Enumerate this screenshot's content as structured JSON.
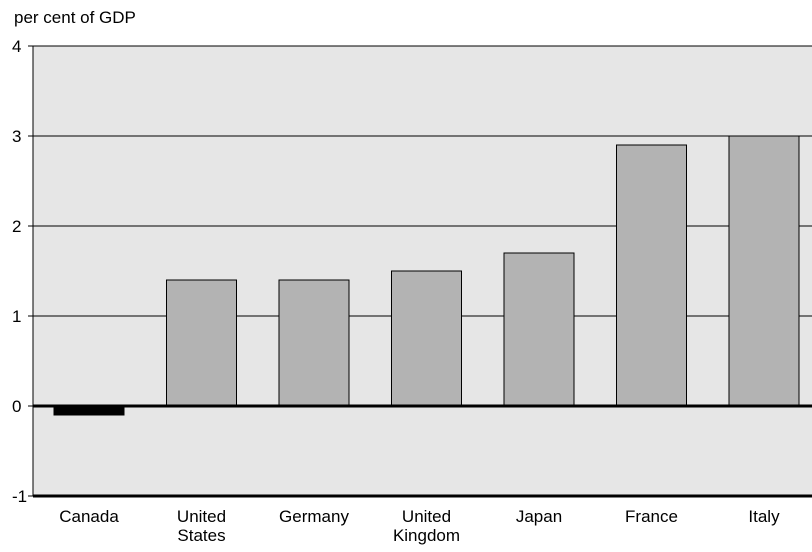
{
  "chart_data": {
    "type": "bar",
    "title": "",
    "ylabel": "per cent of GDP",
    "xlabel": "",
    "categories": [
      [
        "Canada"
      ],
      [
        "United",
        "States"
      ],
      [
        "Germany"
      ],
      [
        "United",
        "Kingdom"
      ],
      [
        "Japan"
      ],
      [
        "France"
      ],
      [
        "Italy"
      ]
    ],
    "values": [
      -0.1,
      1.4,
      1.4,
      1.5,
      1.7,
      2.9,
      3.0
    ],
    "ylim": [
      -1,
      4
    ],
    "yticks": [
      "4",
      "3",
      "2",
      "1",
      "0",
      "-1"
    ],
    "ytick_values": [
      4,
      3,
      2,
      1,
      0,
      -1
    ],
    "grid": true,
    "colors": {
      "plot_background": "#e6e6e6",
      "bar_fill": "#b3b3b3",
      "bar_stroke": "#000000",
      "negative_bar_fill": "#000000",
      "grid": "#000000"
    }
  }
}
